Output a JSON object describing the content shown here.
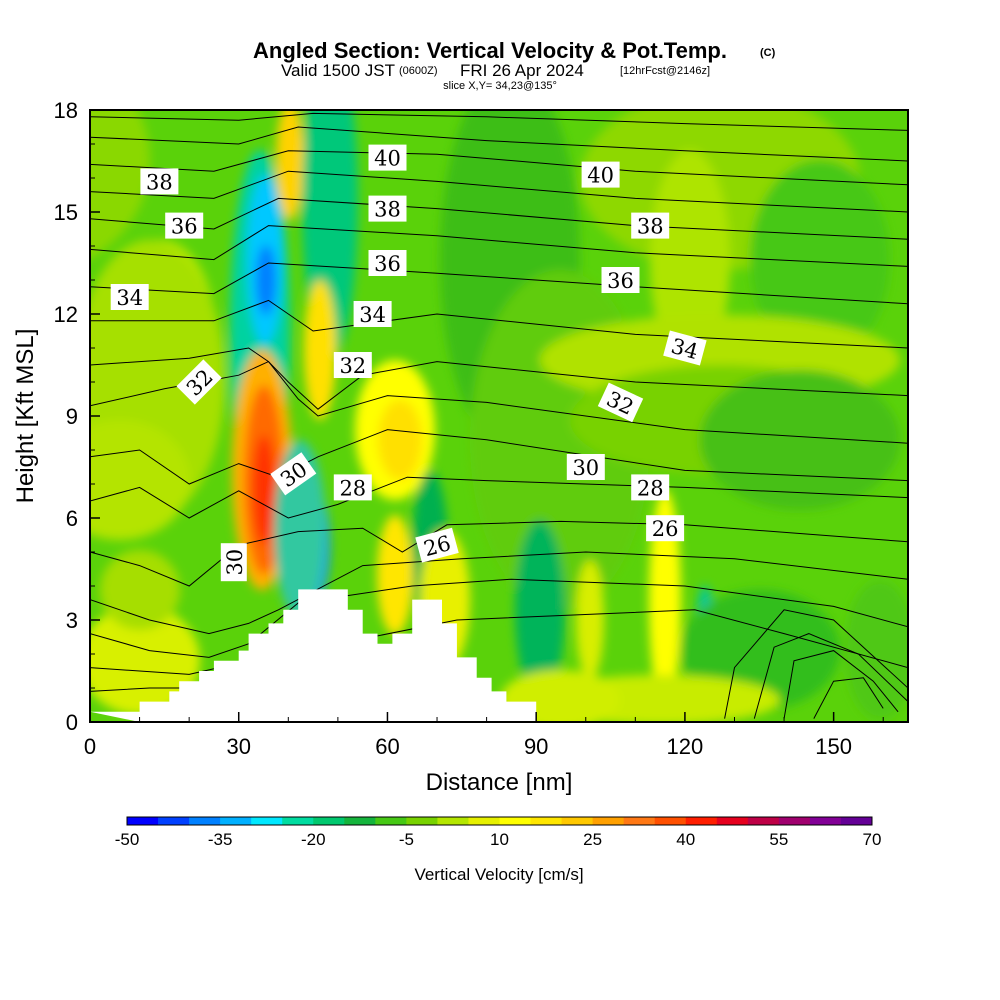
{
  "chart_data": {
    "type": "heatmap",
    "title": {
      "main": "Angled Section: Vertical Velocity & Pot.Temp.",
      "main_suffix": "(C)",
      "valid_prefix": "Valid 1500 JST",
      "valid_utc": "(0600Z)",
      "valid_date": "FRI 26 Apr 2024",
      "forecast": "[12hrFcst@2146z]",
      "slice": "slice X,Y= 34,23@135°"
    },
    "xlabel": "Distance [nm]",
    "ylabel": "Height [Kft MSL]",
    "xlim": [
      0,
      165
    ],
    "ylim": [
      0,
      18
    ],
    "xticks": [
      "0",
      "30",
      "60",
      "90",
      "120",
      "150"
    ],
    "yticks": [
      "0",
      "3",
      "6",
      "9",
      "12",
      "15",
      "18"
    ],
    "colorbar": {
      "label": "Vertical Velocity [cm/s]",
      "tick_labels": [
        "-50",
        "-35",
        "-20",
        "-5",
        "10",
        "25",
        "40",
        "55",
        "70"
      ],
      "colors": [
        "#0000ff",
        "#0040ff",
        "#0080ff",
        "#00b0ff",
        "#00e8ff",
        "#00dca0",
        "#00c86e",
        "#14b43c",
        "#46c814",
        "#78d200",
        "#b4e600",
        "#e6f000",
        "#ffff00",
        "#ffe600",
        "#ffc800",
        "#ffa000",
        "#ff7814",
        "#ff5000",
        "#ff1e00",
        "#e6001e",
        "#be0046",
        "#a0006e",
        "#820096",
        "#640096"
      ]
    },
    "contour_labels": [
      {
        "text": "38",
        "x": 14,
        "y": 15.9,
        "angle": 0
      },
      {
        "text": "36",
        "x": 19,
        "y": 14.6,
        "angle": 0
      },
      {
        "text": "34",
        "x": 8,
        "y": 12.5,
        "angle": 0
      },
      {
        "text": "32",
        "x": 22,
        "y": 10.0,
        "angle": -45
      },
      {
        "text": "30",
        "x": 29,
        "y": 4.7,
        "angle": -90
      },
      {
        "text": "30",
        "x": 41,
        "y": 7.3,
        "angle": -35
      },
      {
        "text": "40",
        "x": 60,
        "y": 16.6,
        "angle": 0
      },
      {
        "text": "38",
        "x": 60,
        "y": 15.1,
        "angle": 0
      },
      {
        "text": "36",
        "x": 60,
        "y": 13.5,
        "angle": 0
      },
      {
        "text": "34",
        "x": 57,
        "y": 12.0,
        "angle": 0
      },
      {
        "text": "32",
        "x": 53,
        "y": 10.5,
        "angle": 0
      },
      {
        "text": "28",
        "x": 53,
        "y": 6.9,
        "angle": 0
      },
      {
        "text": "26",
        "x": 70,
        "y": 5.2,
        "angle": -15
      },
      {
        "text": "40",
        "x": 103,
        "y": 16.1,
        "angle": 0
      },
      {
        "text": "38",
        "x": 113,
        "y": 14.6,
        "angle": 0
      },
      {
        "text": "36",
        "x": 107,
        "y": 13.0,
        "angle": 0
      },
      {
        "text": "34",
        "x": 120,
        "y": 11.0,
        "angle": 15
      },
      {
        "text": "32",
        "x": 107,
        "y": 9.4,
        "angle": 25
      },
      {
        "text": "30",
        "x": 100,
        "y": 7.5,
        "angle": 0
      },
      {
        "text": "28",
        "x": 113,
        "y": 6.9,
        "angle": 0
      },
      {
        "text": "26",
        "x": 116,
        "y": 5.7,
        "angle": 0
      }
    ],
    "terrain": [
      [
        0,
        0.3
      ],
      [
        10,
        0.3
      ],
      [
        10,
        0.6
      ],
      [
        16,
        0.6
      ],
      [
        16,
        0.9
      ],
      [
        18,
        0.9
      ],
      [
        18,
        1.2
      ],
      [
        22,
        1.2
      ],
      [
        22,
        1.5
      ],
      [
        25,
        1.5
      ],
      [
        25,
        1.8
      ],
      [
        30,
        1.8
      ],
      [
        30,
        2.1
      ],
      [
        32,
        2.1
      ],
      [
        32,
        2.6
      ],
      [
        36,
        2.6
      ],
      [
        36,
        2.9
      ],
      [
        39,
        2.9
      ],
      [
        39,
        3.3
      ],
      [
        42,
        3.3
      ],
      [
        42,
        3.9
      ],
      [
        52,
        3.9
      ],
      [
        52,
        3.3
      ],
      [
        55,
        3.3
      ],
      [
        55,
        2.6
      ],
      [
        58,
        2.6
      ],
      [
        58,
        2.3
      ],
      [
        61,
        2.3
      ],
      [
        61,
        2.6
      ],
      [
        65,
        2.6
      ],
      [
        65,
        3.6
      ],
      [
        71,
        3.6
      ],
      [
        71,
        2.9
      ],
      [
        74,
        2.9
      ],
      [
        74,
        1.9
      ],
      [
        78,
        1.9
      ],
      [
        78,
        1.3
      ],
      [
        81,
        1.3
      ],
      [
        81,
        0.9
      ],
      [
        84,
        0.9
      ],
      [
        84,
        0.6
      ],
      [
        90,
        0.6
      ],
      [
        90,
        0
      ]
    ]
  }
}
